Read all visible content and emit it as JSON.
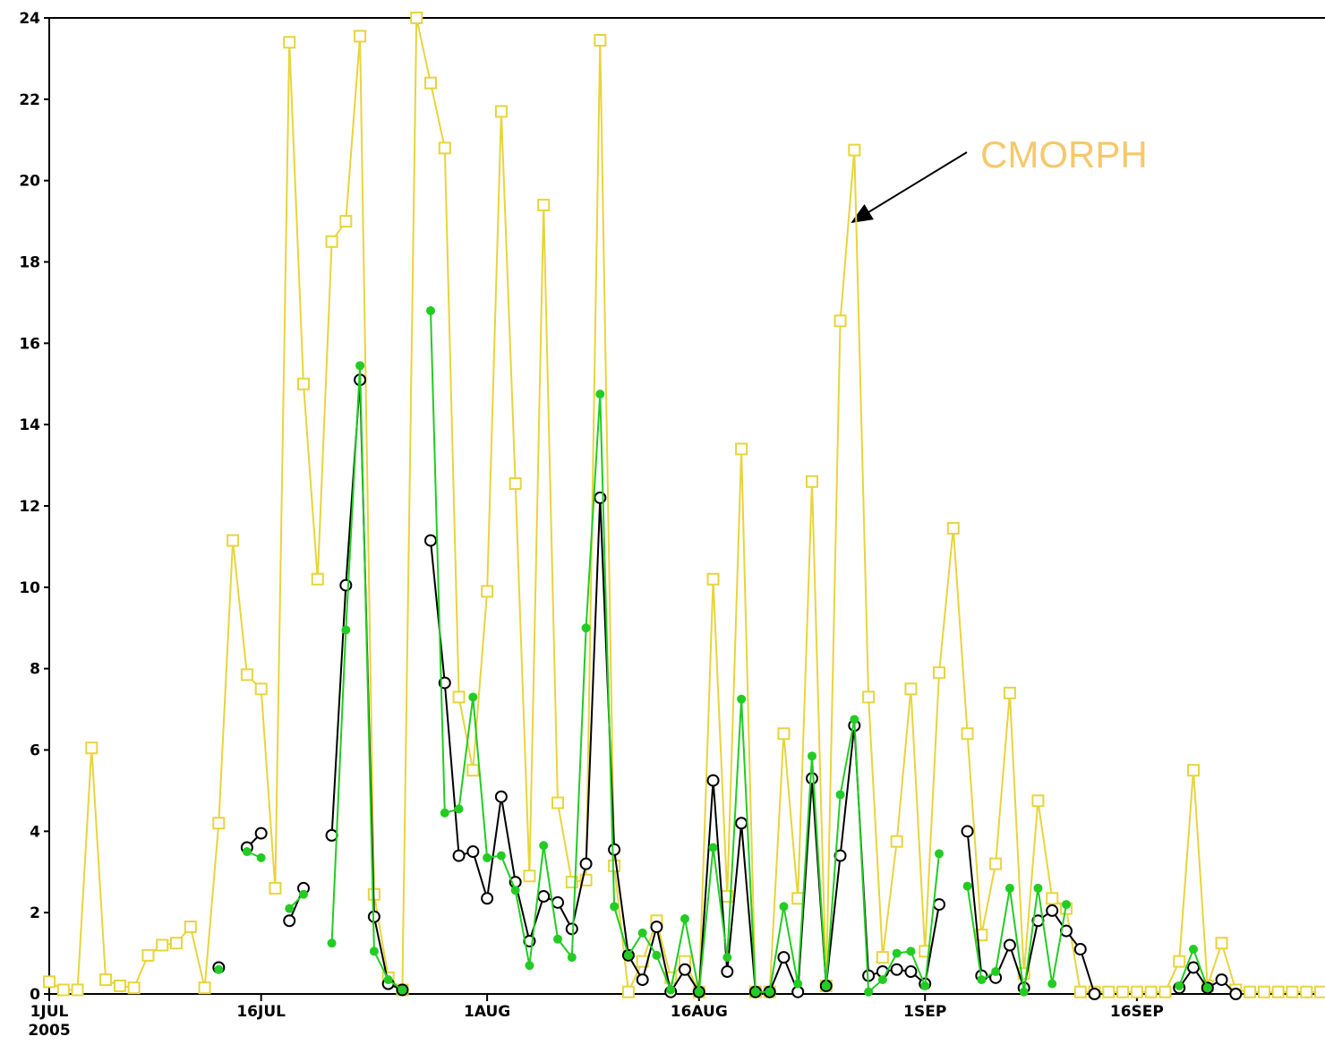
{
  "chart_data": {
    "type": "line",
    "annotation": "CMORPH",
    "x": [
      0,
      1,
      2,
      3,
      4,
      5,
      6,
      7,
      8,
      9,
      10,
      11,
      12,
      13,
      14,
      15,
      16,
      17,
      18,
      19,
      20,
      21,
      22,
      23,
      24,
      25,
      26,
      27,
      28,
      29,
      30,
      31,
      32,
      33,
      34,
      35,
      36,
      37,
      38,
      39,
      40,
      41,
      42,
      43,
      44,
      45,
      46,
      47,
      48,
      49,
      50,
      51,
      52,
      53,
      54,
      55,
      56,
      57,
      58,
      59,
      60,
      61,
      62,
      63,
      64,
      65,
      66,
      67,
      68,
      69,
      70,
      71,
      72,
      73,
      74,
      75,
      76,
      77,
      78,
      79,
      80,
      81,
      82,
      83,
      84,
      85,
      86,
      87,
      88,
      89,
      90
    ],
    "xlim": [
      0,
      90
    ],
    "xticks": [
      {
        "value": 0,
        "label": "1JUL",
        "sublabel": "2005"
      },
      {
        "value": 15,
        "label": "16JUL"
      },
      {
        "value": 31,
        "label": "1AUG"
      },
      {
        "value": 46,
        "label": "16AUG"
      },
      {
        "value": 62,
        "label": "1SEP"
      },
      {
        "value": 77,
        "label": "16SEP"
      }
    ],
    "ylim": [
      0,
      24
    ],
    "yticks": [
      0,
      2,
      4,
      6,
      8,
      10,
      12,
      14,
      16,
      18,
      20,
      22,
      24
    ],
    "series": [
      {
        "color": "#e8d43c",
        "marker": "square",
        "values": [
          0.3,
          0.1,
          0.1,
          6.05,
          0.35,
          0.2,
          0.15,
          0.95,
          1.2,
          1.25,
          1.65,
          0.15,
          4.2,
          11.15,
          7.85,
          7.5,
          2.6,
          23.4,
          15,
          10.2,
          18.5,
          19,
          23.55,
          2.45,
          0.4,
          0.1,
          24,
          22.4,
          20.8,
          7.3,
          5.5,
          9.9,
          21.7,
          12.55,
          2.9,
          19.4,
          4.7,
          2.75,
          2.8,
          23.45,
          3.15,
          0.05,
          0.8,
          1.8,
          0.4,
          0.8,
          0.05,
          10.2,
          2.4,
          13.4,
          0.05,
          0.05,
          6.4,
          2.35,
          12.6,
          0.2,
          16.55,
          20.75,
          7.3,
          0.9,
          3.75,
          7.5,
          1.05,
          7.9,
          11.45,
          6.4,
          1.45,
          3.2,
          7.4,
          0.5,
          4.75,
          2.35,
          2.1,
          0.05,
          0.05,
          0.05,
          0.05,
          0.05,
          0.05,
          0.05,
          0.8,
          5.5,
          0.2,
          1.25,
          0.1,
          0.05,
          0.05,
          0.05,
          0.05,
          0.05,
          0.05
        ]
      },
      {
        "color": "#000000",
        "marker": "open-circle",
        "values": [
          null,
          null,
          null,
          null,
          null,
          null,
          null,
          null,
          null,
          null,
          null,
          null,
          0.65,
          null,
          3.6,
          3.95,
          null,
          1.8,
          2.6,
          null,
          3.9,
          10.05,
          15.1,
          1.9,
          0.25,
          0.1,
          null,
          11.15,
          7.65,
          3.4,
          3.5,
          2.35,
          4.85,
          2.75,
          1.3,
          2.4,
          2.25,
          1.6,
          3.2,
          12.2,
          3.55,
          0.95,
          0.35,
          1.65,
          0.05,
          0.6,
          0.05,
          5.25,
          0.55,
          4.2,
          0.05,
          0.05,
          0.9,
          0.05,
          5.3,
          0.2,
          3.4,
          6.6,
          0.45,
          0.55,
          0.6,
          0.55,
          0.25,
          2.2,
          null,
          4.0,
          0.45,
          0.4,
          1.2,
          0.15,
          1.8,
          2.05,
          1.55,
          1.1,
          0,
          null,
          null,
          null,
          null,
          null,
          0.15,
          0.65,
          0.15,
          0.35,
          0,
          null,
          null,
          null,
          null,
          null,
          null
        ]
      },
      {
        "color": "#22cc22",
        "marker": "filled-circle",
        "values": [
          null,
          null,
          null,
          null,
          null,
          null,
          null,
          null,
          null,
          null,
          null,
          null,
          0.6,
          null,
          3.5,
          3.35,
          null,
          2.1,
          2.45,
          null,
          1.25,
          8.95,
          15.45,
          1.05,
          0.35,
          0.1,
          null,
          16.8,
          4.45,
          4.55,
          7.3,
          3.35,
          3.4,
          2.55,
          0.7,
          3.65,
          1.35,
          0.9,
          9.0,
          14.75,
          2.15,
          0.95,
          1.5,
          0.95,
          0.1,
          1.85,
          0.05,
          3.6,
          0.9,
          7.25,
          0.05,
          0.05,
          2.15,
          0.25,
          5.85,
          0.2,
          4.9,
          6.75,
          0.05,
          0.35,
          1.0,
          1.05,
          0.2,
          3.45,
          null,
          2.65,
          0.35,
          0.55,
          2.6,
          0.05,
          2.6,
          0.25,
          2.2,
          null,
          null,
          null,
          null,
          null,
          null,
          null,
          0.2,
          1.1,
          0.15,
          null,
          null,
          null,
          null,
          null,
          null,
          null,
          null
        ]
      }
    ]
  }
}
